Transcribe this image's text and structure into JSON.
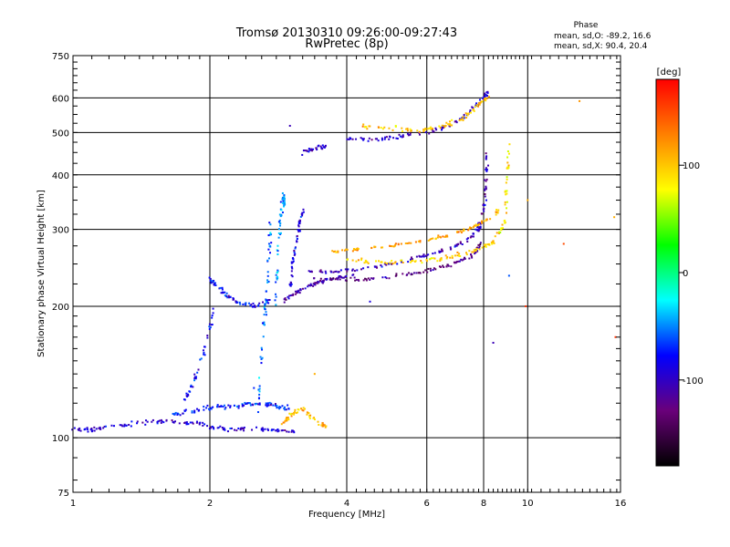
{
  "chart_data": {
    "type": "scatter",
    "title": "Tromsø 20130310 09:26:00-09:27:43",
    "subtitle": "RwPretec (8p)",
    "xlabel": "Frequency [MHz]",
    "ylabel": "Stationary phase Virtual Height [km]",
    "x_scale": "log",
    "y_scale": "log",
    "xlim": [
      1,
      16
    ],
    "ylim": [
      75,
      750
    ],
    "x_ticks": [
      1,
      2,
      4,
      6,
      8,
      10,
      16
    ],
    "x_tick_labels": [
      "1",
      "2",
      "4",
      "6",
      "8",
      "10",
      "16"
    ],
    "y_ticks": [
      75,
      100,
      200,
      300,
      400,
      500,
      600,
      750
    ],
    "y_tick_labels": [
      "75",
      "100",
      "200",
      "300",
      "400",
      "500",
      "600",
      "750"
    ],
    "grid": true,
    "phase_stats": {
      "heading": "Phase",
      "o_mode": "mean, sd,O: -89.2, 16.6",
      "x_mode": "mean, sd,X:  90.4, 20.4"
    },
    "colorbar": {
      "label": "[deg]",
      "range": [
        -180,
        180
      ],
      "ticks": [
        100,
        0,
        -100
      ],
      "tick_labels": [
        "100",
        "0",
        "-100"
      ],
      "colormap": [
        "#000000",
        "#6a007a",
        "#0000ff",
        "#00ffff",
        "#00ff00",
        "#ffff00",
        "#ff8000",
        "#ff0000"
      ]
    },
    "traces": [
      {
        "name": "low-trace",
        "phase": -95,
        "jitter": 0.01,
        "x": [
          1.0,
          1.1,
          1.2,
          1.4,
          1.6,
          1.8,
          2.0,
          2.2,
          2.5,
          2.8,
          3.1
        ],
        "y": [
          105,
          104,
          106,
          108,
          109,
          108,
          106,
          104,
          105,
          104,
          103
        ]
      },
      {
        "name": "low-trace-upper",
        "phase": -75,
        "jitter": 0.012,
        "x": [
          1.6,
          1.8,
          2.0,
          2.2,
          2.4,
          2.6,
          2.8,
          3.0
        ],
        "y": [
          112,
          115,
          117,
          118,
          119,
          120,
          118,
          117
        ]
      },
      {
        "name": "low-yellow",
        "phase": 110,
        "jitter": 0.012,
        "x": [
          2.9,
          3.0,
          3.2,
          3.4,
          3.6
        ],
        "y": [
          108,
          112,
          117,
          110,
          106
        ]
      },
      {
        "name": "rise-2mhz",
        "phase": -80,
        "jitter": 0.01,
        "x": [
          1.75,
          1.85,
          1.95,
          2.05
        ],
        "y": [
          120,
          135,
          160,
          200
        ]
      },
      {
        "name": "cusp-2mhz",
        "phase": -85,
        "jitter": 0.012,
        "x": [
          2.0,
          2.1,
          2.2,
          2.3,
          2.5,
          2.7
        ],
        "y": [
          230,
          220,
          210,
          205,
          200,
          205
        ]
      },
      {
        "name": "spike-2.6",
        "phase": -60,
        "jitter": 0.012,
        "x": [
          2.55,
          2.6,
          2.65,
          2.7,
          2.72
        ],
        "y": [
          110,
          160,
          200,
          260,
          330
        ]
      },
      {
        "name": "spike-2.8",
        "phase": -50,
        "jitter": 0.01,
        "x": [
          2.78,
          2.82,
          2.86,
          2.9,
          2.92
        ],
        "y": [
          200,
          260,
          320,
          360,
          340
        ]
      },
      {
        "name": "spike-3.1",
        "phase": -90,
        "jitter": 0.012,
        "x": [
          3.0,
          3.05,
          3.1,
          3.15,
          3.2
        ],
        "y": [
          220,
          250,
          280,
          310,
          330
        ]
      },
      {
        "name": "f1-cusp",
        "phase": -110,
        "jitter": 0.01,
        "x": [
          2.9,
          3.1,
          3.3,
          3.5,
          3.8,
          4.2
        ],
        "y": [
          205,
          215,
          222,
          228,
          232,
          235
        ]
      },
      {
        "name": "f2-o-mode",
        "phase": -105,
        "jitter": 0.008,
        "x": [
          3.3,
          3.8,
          4.5,
          5.2,
          6.0,
          6.8,
          7.4,
          7.8,
          8.0,
          8.1,
          8.15
        ],
        "y": [
          240,
          240,
          245,
          252,
          262,
          272,
          285,
          300,
          330,
          380,
          450
        ]
      },
      {
        "name": "f2-o-mode-low",
        "phase": -120,
        "jitter": 0.008,
        "x": [
          3.3,
          4.0,
          4.8,
          5.6,
          6.4,
          7.0,
          7.6,
          7.9
        ],
        "y": [
          232,
          230,
          232,
          238,
          245,
          252,
          262,
          280
        ]
      },
      {
        "name": "f2-x-mode",
        "phase": 95,
        "jitter": 0.01,
        "x": [
          4.0,
          4.6,
          5.3,
          6.2,
          7.0,
          7.8,
          8.4,
          8.9,
          9.0,
          9.1
        ],
        "y": [
          255,
          252,
          252,
          255,
          262,
          270,
          280,
          310,
          380,
          470
        ]
      },
      {
        "name": "f2-x-mode-high",
        "phase": 115,
        "jitter": 0.01,
        "x": [
          3.6,
          4.2,
          5.0,
          5.8,
          6.6,
          7.4,
          8.0,
          8.6
        ],
        "y": [
          265,
          270,
          275,
          282,
          290,
          300,
          312,
          330
        ]
      },
      {
        "name": "multihop-o",
        "phase": -100,
        "jitter": 0.01,
        "x": [
          4.0,
          4.6,
          5.2,
          6.0,
          6.8,
          7.5,
          8.0,
          8.2
        ],
        "y": [
          485,
          480,
          490,
          500,
          520,
          560,
          600,
          620
        ]
      },
      {
        "name": "multihop-x",
        "phase": 100,
        "jitter": 0.012,
        "x": [
          4.3,
          5.0,
          5.8,
          6.5,
          7.2,
          7.8,
          8.3
        ],
        "y": [
          520,
          510,
          505,
          515,
          540,
          580,
          610
        ]
      },
      {
        "name": "multihop-cluster",
        "phase": -95,
        "jitter": 0.012,
        "x": [
          3.2,
          3.4,
          3.6
        ],
        "y": [
          450,
          460,
          465
        ]
      }
    ],
    "outliers": [
      {
        "x": 13.0,
        "y": 590,
        "phase": 120
      },
      {
        "x": 9.9,
        "y": 200,
        "phase": 160
      },
      {
        "x": 12.0,
        "y": 278,
        "phase": 150
      },
      {
        "x": 15.6,
        "y": 170,
        "phase": 160
      },
      {
        "x": 15.5,
        "y": 320,
        "phase": 110
      },
      {
        "x": 8.4,
        "y": 165,
        "phase": -105
      },
      {
        "x": 9.1,
        "y": 235,
        "phase": -60
      },
      {
        "x": 10.0,
        "y": 350,
        "phase": 110
      },
      {
        "x": 3.4,
        "y": 140,
        "phase": 110
      },
      {
        "x": 3.0,
        "y": 518,
        "phase": -105
      },
      {
        "x": 4.5,
        "y": 205,
        "phase": -90
      },
      {
        "x": 2.5,
        "y": 130,
        "phase": -70
      }
    ]
  }
}
